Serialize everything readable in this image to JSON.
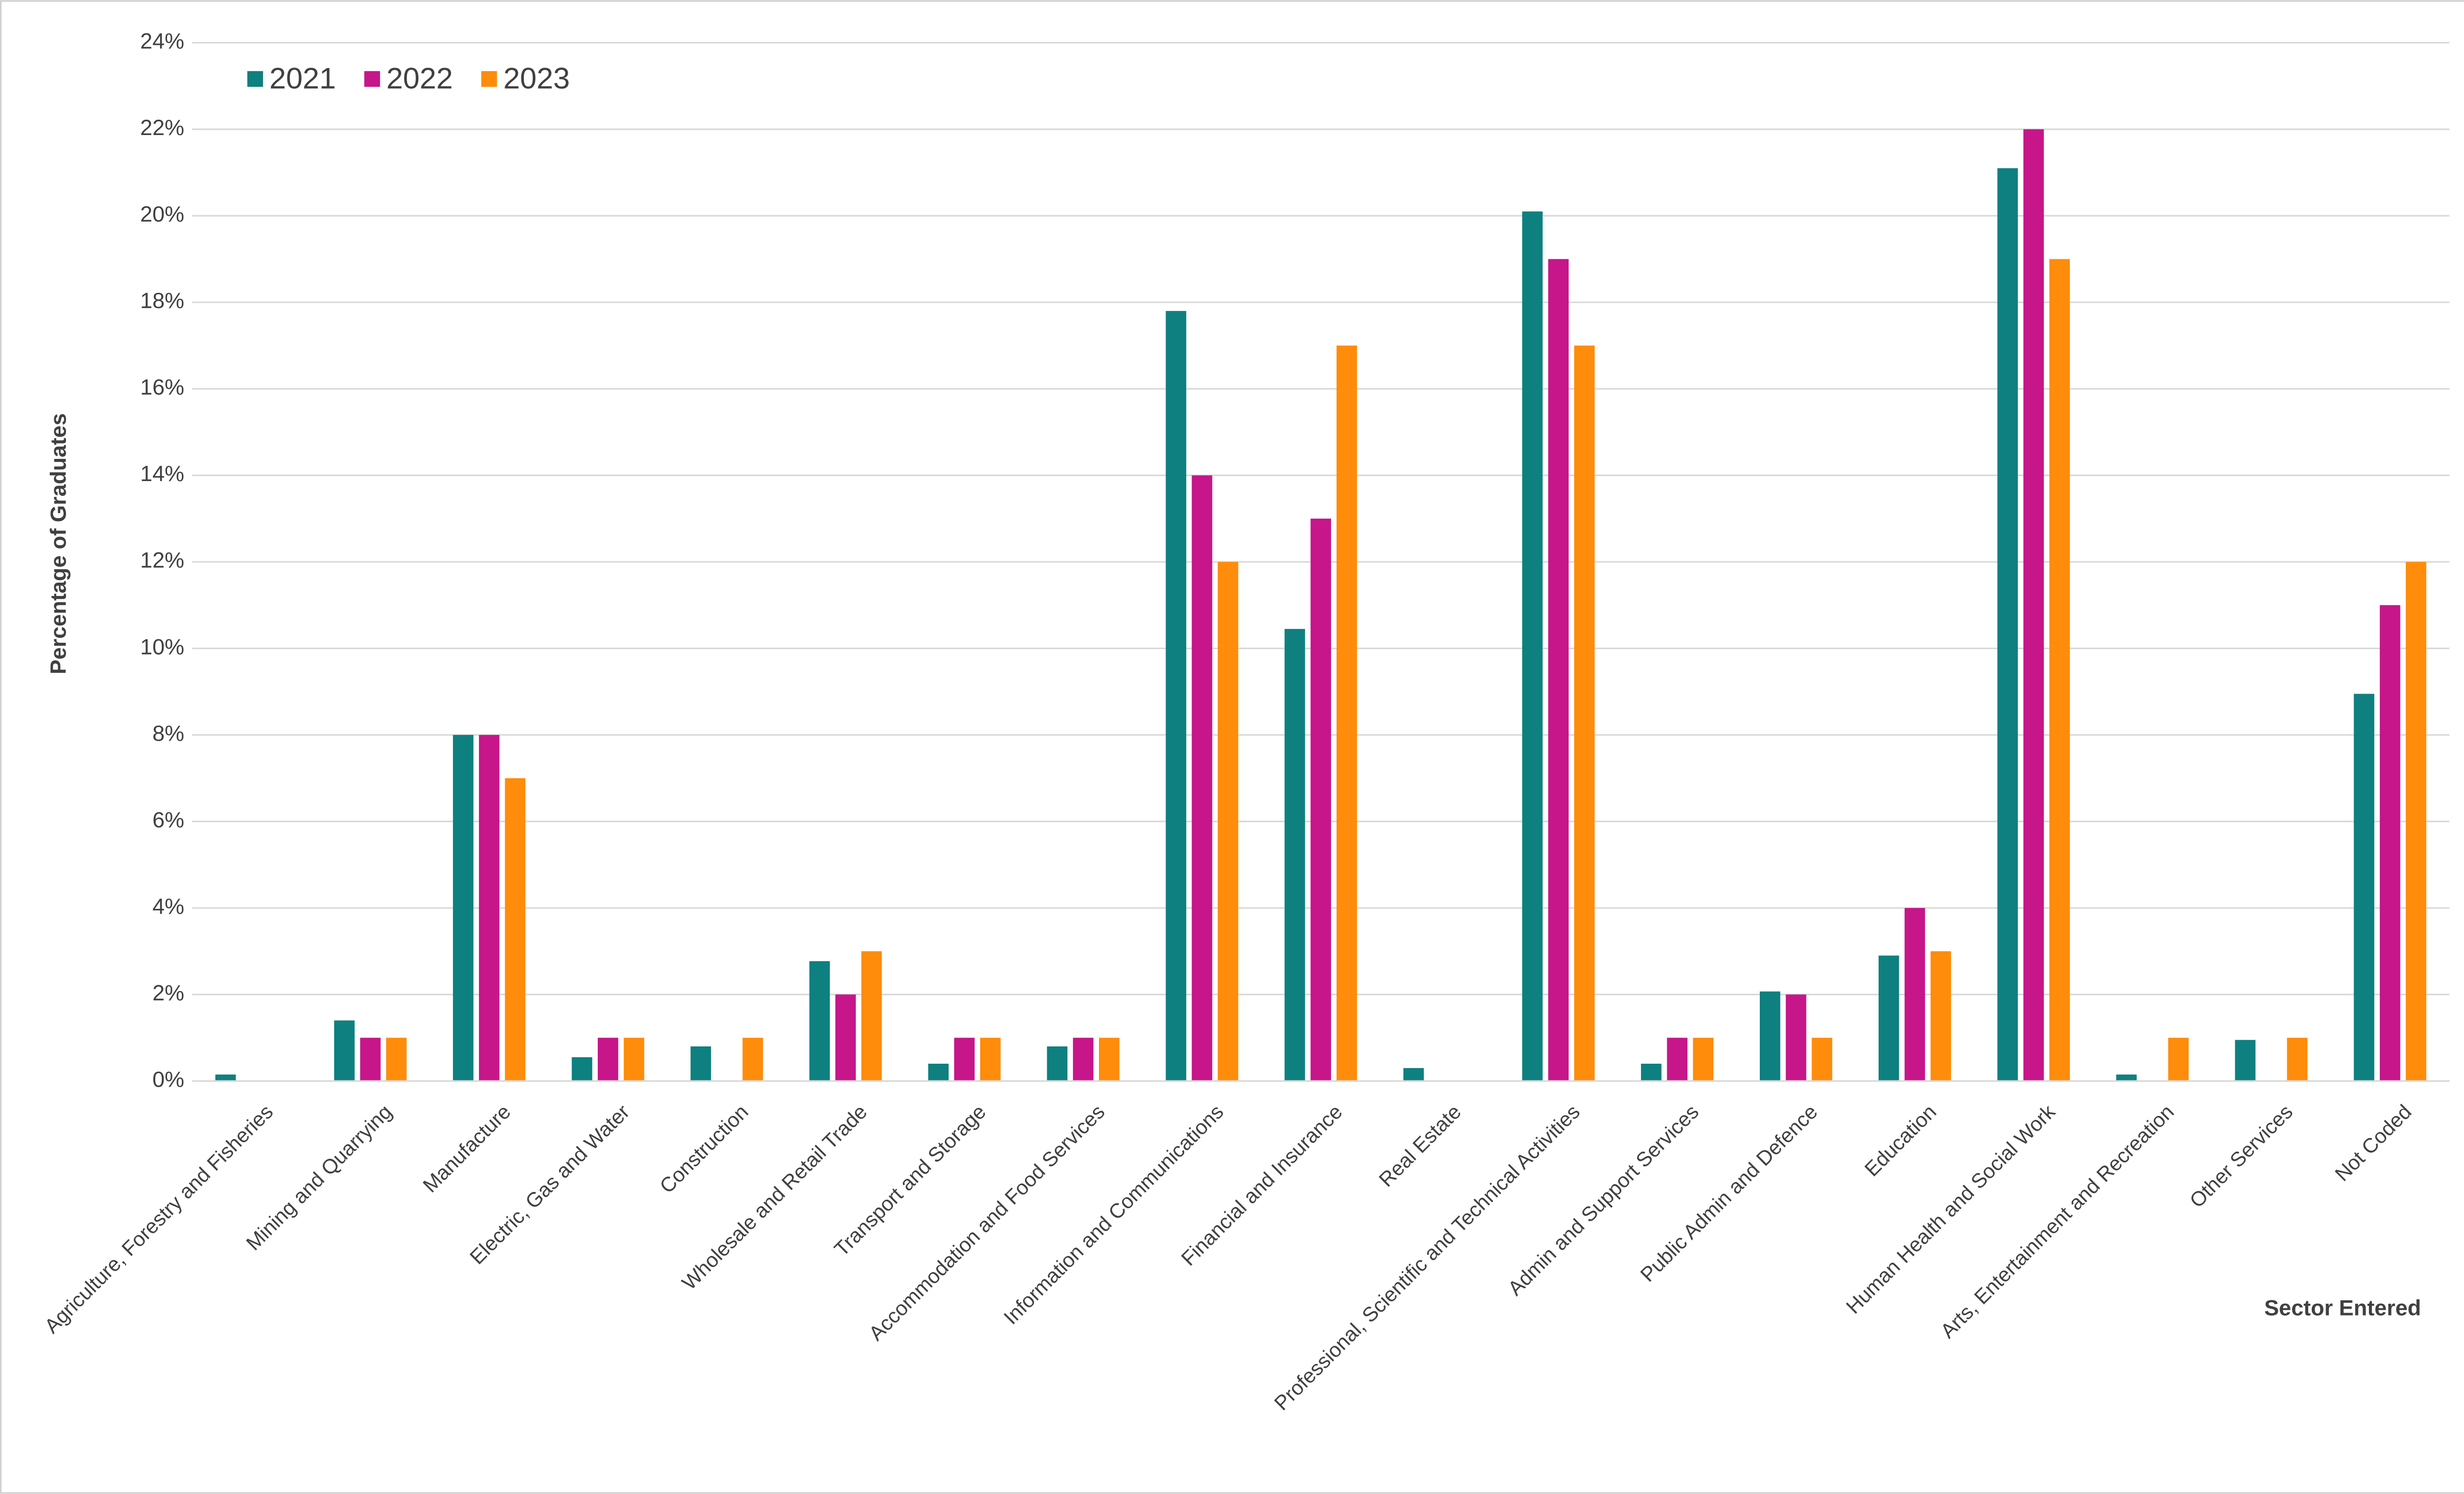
{
  "chart_data": {
    "type": "bar",
    "y_label": "Percentage of Graduates",
    "x_label": "Sector Entered",
    "categories": [
      "Agriculture, Forestry and Fisheries",
      "Mining and Quarrying",
      "Manufacture",
      "Electric, Gas and Water",
      "Construction",
      "Wholesale and Retail Trade",
      "Transport and Storage",
      "Accommodation and Food Services",
      "Information and Communications",
      "Financial and Insurance",
      "Real Estate",
      "Professional, Scientific and Technical Activities",
      "Admin and Support Services",
      "Public Admin and Defence",
      "Education",
      "Human Health and Social Work",
      "Arts, Entertainment and Recreation",
      "Other Services",
      "Not Coded"
    ],
    "series": [
      {
        "name": "2021",
        "color": "#0e8080",
        "values": [
          0.15,
          1.4,
          8,
          0.55,
          0.8,
          2.77,
          0.4,
          0.8,
          17.8,
          10.45,
          0.3,
          20.1,
          0.4,
          2.07,
          2.9,
          21.1,
          0.15,
          0.95,
          8.95
        ]
      },
      {
        "name": "2022",
        "color": "#c6168a",
        "values": [
          null,
          1,
          8,
          1,
          null,
          2,
          1,
          1,
          14,
          13,
          null,
          19,
          1,
          2,
          4,
          22,
          null,
          null,
          11
        ]
      },
      {
        "name": "2023",
        "color": "#ff8c0a",
        "values": [
          null,
          1,
          7,
          1,
          1,
          3,
          1,
          1,
          12,
          17,
          null,
          17,
          1,
          1,
          3,
          19,
          1,
          1,
          12
        ]
      }
    ],
    "ylim": [
      0,
      24
    ],
    "yticks": [
      {
        "value": 0,
        "label": "0%"
      },
      {
        "value": 2,
        "label": "2%"
      },
      {
        "value": 4,
        "label": "4%"
      },
      {
        "value": 6,
        "label": "6%"
      },
      {
        "value": 8,
        "label": "8%"
      },
      {
        "value": 10,
        "label": "10%"
      },
      {
        "value": 12,
        "label": "12%"
      },
      {
        "value": 14,
        "label": "14%"
      },
      {
        "value": 16,
        "label": "16%"
      },
      {
        "value": 18,
        "label": "18%"
      },
      {
        "value": 20,
        "label": "20%"
      },
      {
        "value": 22,
        "label": "22%"
      },
      {
        "value": 24,
        "label": "24%"
      }
    ],
    "grid": true,
    "legend_position": "top-left"
  }
}
